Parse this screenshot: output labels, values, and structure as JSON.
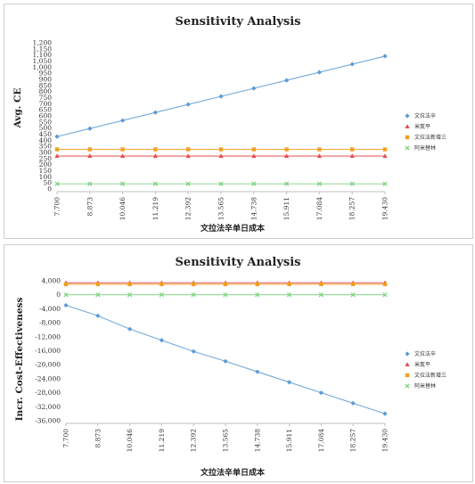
{
  "chart_data": [
    {
      "type": "line",
      "title": "Sensitivity Analysis",
      "xlabel": "文拉法辛单日成本",
      "ylabel": "Avg. CE",
      "x_categories": [
        "7.700",
        "8.873",
        "10.046",
        "11.219",
        "12.392",
        "13.565",
        "14.738",
        "15.911",
        "17.084",
        "18.257",
        "19.430"
      ],
      "ylim": [
        0,
        1200
      ],
      "y_ticks": [
        "0",
        "50",
        "100",
        "150",
        "200",
        "250",
        "300",
        "350",
        "400",
        "450",
        "500",
        "550",
        "600",
        "650",
        "700",
        "750",
        "800",
        "850",
        "900",
        "950",
        "1,000",
        "1,050",
        "1,100",
        "1,150",
        "1,200"
      ],
      "grid": false,
      "legend_position": "right",
      "series": [
        {
          "name": "文拉法辛",
          "color": "#5b9bd5",
          "marker": "diamond",
          "values": [
            430,
            496,
            562,
            628,
            694,
            760,
            826,
            892,
            958,
            1024,
            1090
          ]
        },
        {
          "name": "米氮平",
          "color": "#e64b4b",
          "marker": "triangle",
          "values": [
            270,
            270,
            270,
            270,
            270,
            270,
            270,
            270,
            270,
            270,
            270
          ]
        },
        {
          "name": "文拉法新增三",
          "color": "#f0a020",
          "marker": "square",
          "values": [
            325,
            325,
            325,
            325,
            325,
            325,
            325,
            325,
            325,
            325,
            325
          ]
        },
        {
          "name": "阿米替林",
          "color": "#7ed07e",
          "marker": "x",
          "values": [
            42,
            42,
            42,
            42,
            42,
            42,
            42,
            42,
            42,
            42,
            42
          ]
        }
      ]
    },
    {
      "type": "line",
      "title": "Sensitivity Analysis",
      "xlabel": "文拉法辛单日成本",
      "ylabel": "Incr. Cost-Effectiveness",
      "x_categories": [
        "7.700",
        "8.873",
        "10.046",
        "11.219",
        "12.392",
        "13.565",
        "14.738",
        "15.911",
        "17.084",
        "18.257",
        "19.430"
      ],
      "ylim": [
        -36000,
        4000
      ],
      "y_ticks": [
        "4,000",
        "0",
        "-4,000",
        "-8,000",
        "-12,000",
        "-16,000",
        "-20,000",
        "-24,000",
        "-28,000",
        "-32,000",
        "-36,000"
      ],
      "grid": false,
      "legend_position": "right",
      "series": [
        {
          "name": "文拉法辛",
          "color": "#5b9bd5",
          "marker": "diamond",
          "values": [
            -3000,
            -6000,
            -9800,
            -13000,
            -16200,
            -19000,
            -22000,
            -25000,
            -28000,
            -31000,
            -34000
          ]
        },
        {
          "name": "米氮平",
          "color": "#e64b4b",
          "marker": "triangle",
          "values": [
            3400,
            3400,
            3400,
            3400,
            3400,
            3400,
            3400,
            3400,
            3400,
            3400,
            3400
          ]
        },
        {
          "name": "文拉法新增三",
          "color": "#f0a020",
          "marker": "square",
          "values": [
            3000,
            3000,
            3000,
            3000,
            3000,
            3000,
            3000,
            3000,
            3000,
            3000,
            3000
          ]
        },
        {
          "name": "阿米替林",
          "color": "#7ed07e",
          "marker": "x",
          "values": [
            0,
            0,
            0,
            0,
            0,
            0,
            0,
            0,
            0,
            0,
            0
          ]
        }
      ]
    }
  ]
}
